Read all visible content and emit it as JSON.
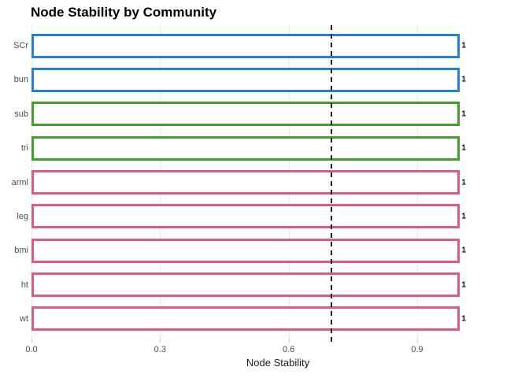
{
  "chart_data": {
    "type": "bar",
    "orientation": "horizontal",
    "title": "Node Stability by Community",
    "xlabel": "Node Stability",
    "ylabel": "",
    "xlim": [
      0,
      1.15
    ],
    "x_ticks": [
      0,
      0.3,
      0.6,
      0.9
    ],
    "x_tick_labels": [
      "0.0",
      "0.3",
      "0.6",
      "0.9"
    ],
    "grid": "vertical-major-only",
    "legend": "none",
    "categories": [
      "SCr",
      "bun",
      "sub",
      "tri",
      "arml",
      "leg",
      "bmi",
      "ht",
      "wt"
    ],
    "values": [
      1,
      1,
      1,
      1,
      1,
      1,
      1,
      1,
      1
    ],
    "bars": [
      {
        "label": "SCr",
        "value": 1,
        "value_label": "1",
        "community": 1,
        "color": "#2383d2"
      },
      {
        "label": "bun",
        "value": 1,
        "value_label": "1",
        "community": 1,
        "color": "#2383d2"
      },
      {
        "label": "sub",
        "value": 1,
        "value_label": "1",
        "community": 2,
        "color": "#41a02d"
      },
      {
        "label": "tri",
        "value": 1,
        "value_label": "1",
        "community": 2,
        "color": "#41a02d"
      },
      {
        "label": "arml",
        "value": 1,
        "value_label": "1",
        "community": 3,
        "color": "#dc5b80"
      },
      {
        "label": "leg",
        "value": 1,
        "value_label": "1",
        "community": 3,
        "color": "#dc5b80"
      },
      {
        "label": "bmi",
        "value": 1,
        "value_label": "1",
        "community": 3,
        "color": "#dc5b80"
      },
      {
        "label": "ht",
        "value": 1,
        "value_label": "1",
        "community": 3,
        "color": "#dc5b80"
      },
      {
        "label": "wt",
        "value": 1,
        "value_label": "1",
        "community": 3,
        "color": "#dc5b80"
      }
    ],
    "communities": [
      {
        "id": 1,
        "color": "#2383d2",
        "members": [
          "SCr",
          "bun"
        ]
      },
      {
        "id": 2,
        "color": "#41a02d",
        "members": [
          "sub",
          "tri"
        ]
      },
      {
        "id": 3,
        "color": "#dc5b80",
        "members": [
          "arml",
          "leg",
          "bmi",
          "ht",
          "wt"
        ]
      }
    ],
    "reference_line": {
      "x": 0.7,
      "style": "dashed",
      "color": "#1a1a1a"
    },
    "bar_fill": "#ffffff",
    "colors": {
      "background": "#ffffff",
      "grid": "#e9e9e9",
      "tick": "#c4c4c4",
      "axis_text": "#4d4d4d",
      "title": "#000000"
    }
  }
}
